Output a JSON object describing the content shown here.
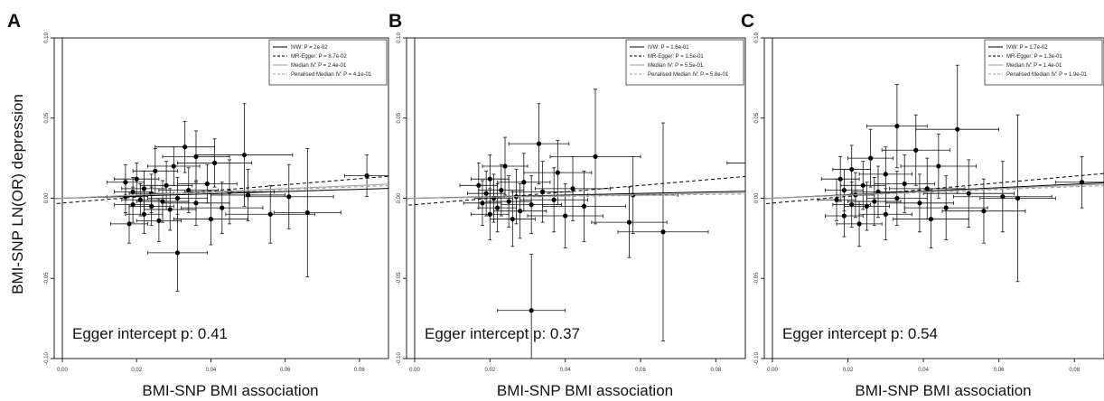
{
  "y_axis_label": "BMI-SNP LN(OR) depression",
  "chart_data": [
    {
      "type": "scatter",
      "panel_label": "A",
      "xlabel": "BMI-SNP BMI association",
      "xlim": [
        0.0,
        0.09
      ],
      "ylim": [
        -0.1,
        0.1
      ],
      "xticks": [
        "0.00",
        "0.02",
        "0.04",
        "0.06",
        "0.08"
      ],
      "yticks": [
        "-0.10",
        "-0.05",
        "0.00",
        "0.05",
        "0.10"
      ],
      "annotation": "Egger intercept p: 0.41",
      "legend": [
        {
          "label": "IVW: P = 2e-02",
          "style": "solid",
          "color": "#000000"
        },
        {
          "label": "MR-Egger: P = 8.7e-02",
          "style": "dashed",
          "color": "#000000"
        },
        {
          "label": "Median IV: P = 2.4e-01",
          "style": "solid",
          "color": "#9a9a9a"
        },
        {
          "label": "Penalised Median IV: P = 4.1e-01",
          "style": "dashed",
          "color": "#9a9a9a"
        }
      ],
      "lines": [
        {
          "name": "IVW",
          "intercept": 0,
          "slope": 0.07,
          "style": "solid",
          "color": "#000000"
        },
        {
          "name": "MR-Egger",
          "intercept": -0.003,
          "slope": 0.19,
          "style": "dashed",
          "color": "#000000"
        },
        {
          "name": "Median IV",
          "intercept": 0,
          "slope": 0.1,
          "style": "solid",
          "color": "#9a9a9a"
        },
        {
          "name": "Penalised Median IV",
          "intercept": 0,
          "slope": 0.09,
          "style": "dashed",
          "color": "#9a9a9a"
        }
      ],
      "points": [
        {
          "x": 0.033,
          "y": 0.032,
          "xerr": 0.008,
          "yerr": 0.016
        },
        {
          "x": 0.049,
          "y": 0.027,
          "xerr": 0.013,
          "yerr": 0.032
        },
        {
          "x": 0.036,
          "y": 0.026,
          "xerr": 0.009,
          "yerr": 0.016
        },
        {
          "x": 0.041,
          "y": 0.022,
          "xerr": 0.01,
          "yerr": 0.015
        },
        {
          "x": 0.03,
          "y": 0.02,
          "xerr": 0.007,
          "yerr": 0.012
        },
        {
          "x": 0.025,
          "y": 0.017,
          "xerr": 0.006,
          "yerr": 0.014
        },
        {
          "x": 0.082,
          "y": 0.014,
          "xerr": 0.006,
          "yerr": 0.013
        },
        {
          "x": 0.02,
          "y": 0.012,
          "xerr": 0.006,
          "yerr": 0.01
        },
        {
          "x": 0.017,
          "y": 0.01,
          "xerr": 0.005,
          "yerr": 0.011
        },
        {
          "x": 0.039,
          "y": 0.009,
          "xerr": 0.008,
          "yerr": 0.012
        },
        {
          "x": 0.028,
          "y": 0.008,
          "xerr": 0.007,
          "yerr": 0.015
        },
        {
          "x": 0.022,
          "y": 0.006,
          "xerr": 0.006,
          "yerr": 0.011
        },
        {
          "x": 0.034,
          "y": 0.005,
          "xerr": 0.008,
          "yerr": 0.014
        },
        {
          "x": 0.019,
          "y": 0.004,
          "xerr": 0.005,
          "yerr": 0.009
        },
        {
          "x": 0.045,
          "y": 0.004,
          "xerr": 0.012,
          "yerr": 0.02
        },
        {
          "x": 0.024,
          "y": 0.003,
          "xerr": 0.006,
          "yerr": 0.012
        },
        {
          "x": 0.05,
          "y": 0.002,
          "xerr": 0.01,
          "yerr": 0.016
        },
        {
          "x": 0.061,
          "y": 0.001,
          "xerr": 0.012,
          "yerr": 0.02
        },
        {
          "x": 0.017,
          "y": 0.001,
          "xerr": 0.005,
          "yerr": 0.01
        },
        {
          "x": 0.031,
          "y": 0.0,
          "xerr": 0.008,
          "yerr": 0.013
        },
        {
          "x": 0.021,
          "y": -0.001,
          "xerr": 0.005,
          "yerr": 0.01
        },
        {
          "x": 0.027,
          "y": -0.002,
          "xerr": 0.007,
          "yerr": 0.013
        },
        {
          "x": 0.036,
          "y": -0.003,
          "xerr": 0.009,
          "yerr": 0.014
        },
        {
          "x": 0.019,
          "y": -0.004,
          "xerr": 0.005,
          "yerr": 0.011
        },
        {
          "x": 0.024,
          "y": -0.005,
          "xerr": 0.006,
          "yerr": 0.012
        },
        {
          "x": 0.043,
          "y": -0.006,
          "xerr": 0.011,
          "yerr": 0.016
        },
        {
          "x": 0.029,
          "y": -0.007,
          "xerr": 0.007,
          "yerr": 0.013
        },
        {
          "x": 0.056,
          "y": -0.01,
          "xerr": 0.012,
          "yerr": 0.018
        },
        {
          "x": 0.066,
          "y": -0.009,
          "xerr": 0.009,
          "yerr": 0.04
        },
        {
          "x": 0.022,
          "y": -0.01,
          "xerr": 0.005,
          "yerr": 0.012
        },
        {
          "x": 0.04,
          "y": -0.013,
          "xerr": 0.01,
          "yerr": 0.016
        },
        {
          "x": 0.026,
          "y": -0.014,
          "xerr": 0.006,
          "yerr": 0.013
        },
        {
          "x": 0.018,
          "y": -0.016,
          "xerr": 0.005,
          "yerr": 0.012
        },
        {
          "x": 0.031,
          "y": -0.034,
          "xerr": 0.008,
          "yerr": 0.024
        }
      ]
    },
    {
      "type": "scatter",
      "panel_label": "B",
      "xlabel": "BMI-SNP BMI association",
      "xlim": [
        0.0,
        0.09
      ],
      "ylim": [
        -0.1,
        0.1
      ],
      "xticks": [
        "0.00",
        "0.02",
        "0.04",
        "0.06",
        "0.08"
      ],
      "yticks": [
        "-0.10",
        "-0.05",
        "0.00",
        "0.05",
        "0.10"
      ],
      "annotation": "Egger intercept p: 0.37",
      "legend": [
        {
          "label": "IVW: P = 1.6e-01",
          "style": "solid",
          "color": "#000000"
        },
        {
          "label": "MR-Egger: P = 1.5e-01",
          "style": "dashed",
          "color": "#000000"
        },
        {
          "label": "Median IV: P = 5.5e-01",
          "style": "solid",
          "color": "#9a9a9a"
        },
        {
          "label": "Penalised Median IV: P = 5.8e-01",
          "style": "dashed",
          "color": "#9a9a9a"
        }
      ],
      "lines": [
        {
          "name": "IVW",
          "intercept": 0,
          "slope": 0.05,
          "style": "solid",
          "color": "#000000"
        },
        {
          "name": "MR-Egger",
          "intercept": -0.004,
          "slope": 0.2,
          "style": "dashed",
          "color": "#000000"
        },
        {
          "name": "Median IV",
          "intercept": 0,
          "slope": 0.04,
          "style": "solid",
          "color": "#9a9a9a"
        },
        {
          "name": "Penalised Median IV",
          "intercept": 0,
          "slope": 0.03,
          "style": "dashed",
          "color": "#9a9a9a"
        }
      ],
      "points": [
        {
          "x": 0.033,
          "y": 0.034,
          "xerr": 0.008,
          "yerr": 0.025
        },
        {
          "x": 0.048,
          "y": 0.026,
          "xerr": 0.012,
          "yerr": 0.042
        },
        {
          "x": 0.089,
          "y": 0.022,
          "xerr": 0.006,
          "yerr": 0.022
        },
        {
          "x": 0.024,
          "y": 0.02,
          "xerr": 0.006,
          "yerr": 0.018
        },
        {
          "x": 0.038,
          "y": 0.016,
          "xerr": 0.009,
          "yerr": 0.02
        },
        {
          "x": 0.02,
          "y": 0.012,
          "xerr": 0.005,
          "yerr": 0.015
        },
        {
          "x": 0.029,
          "y": 0.01,
          "xerr": 0.007,
          "yerr": 0.018
        },
        {
          "x": 0.017,
          "y": 0.008,
          "xerr": 0.005,
          "yerr": 0.014
        },
        {
          "x": 0.042,
          "y": 0.006,
          "xerr": 0.01,
          "yerr": 0.02
        },
        {
          "x": 0.023,
          "y": 0.005,
          "xerr": 0.006,
          "yerr": 0.016
        },
        {
          "x": 0.034,
          "y": 0.004,
          "xerr": 0.008,
          "yerr": 0.019
        },
        {
          "x": 0.019,
          "y": 0.003,
          "xerr": 0.005,
          "yerr": 0.014
        },
        {
          "x": 0.058,
          "y": 0.002,
          "xerr": 0.012,
          "yerr": 0.024
        },
        {
          "x": 0.027,
          "y": 0.001,
          "xerr": 0.007,
          "yerr": 0.017
        },
        {
          "x": 0.021,
          "y": 0.0,
          "xerr": 0.005,
          "yerr": 0.015
        },
        {
          "x": 0.037,
          "y": -0.001,
          "xerr": 0.009,
          "yerr": 0.02
        },
        {
          "x": 0.025,
          "y": -0.002,
          "xerr": 0.006,
          "yerr": 0.016
        },
        {
          "x": 0.018,
          "y": -0.003,
          "xerr": 0.005,
          "yerr": 0.014
        },
        {
          "x": 0.031,
          "y": -0.004,
          "xerr": 0.008,
          "yerr": 0.018
        },
        {
          "x": 0.045,
          "y": -0.005,
          "xerr": 0.011,
          "yerr": 0.022
        },
        {
          "x": 0.022,
          "y": -0.006,
          "xerr": 0.005,
          "yerr": 0.015
        },
        {
          "x": 0.028,
          "y": -0.008,
          "xerr": 0.007,
          "yerr": 0.017
        },
        {
          "x": 0.02,
          "y": -0.01,
          "xerr": 0.005,
          "yerr": 0.016
        },
        {
          "x": 0.04,
          "y": -0.011,
          "xerr": 0.01,
          "yerr": 0.02
        },
        {
          "x": 0.026,
          "y": -0.013,
          "xerr": 0.006,
          "yerr": 0.017
        },
        {
          "x": 0.057,
          "y": -0.015,
          "xerr": 0.01,
          "yerr": 0.022
        },
        {
          "x": 0.066,
          "y": -0.021,
          "xerr": 0.012,
          "yerr": 0.068
        },
        {
          "x": 0.031,
          "y": -0.07,
          "xerr": 0.009,
          "yerr": 0.035
        }
      ]
    },
    {
      "type": "scatter",
      "panel_label": "C",
      "xlabel": "BMI-SNP BMI association",
      "xlim": [
        0.0,
        0.09
      ],
      "ylim": [
        -0.1,
        0.1
      ],
      "xticks": [
        "0.00",
        "0.02",
        "0.04",
        "0.06",
        "0.08"
      ],
      "yticks": [
        "-0.10",
        "-0.05",
        "0.00",
        "0.05",
        "0.10"
      ],
      "annotation": "Egger intercept p: 0.54",
      "legend": [
        {
          "label": "IVW: P = 1.7e-02",
          "style": "solid",
          "color": "#000000"
        },
        {
          "label": "MR-Egger: P = 1.3e-01",
          "style": "dashed",
          "color": "#000000"
        },
        {
          "label": "Median IV: P = 1.4e-01",
          "style": "solid",
          "color": "#9a9a9a"
        },
        {
          "label": "Penalised Median IV: P = 1.9e-01",
          "style": "dashed",
          "color": "#9a9a9a"
        }
      ],
      "lines": [
        {
          "name": "IVW",
          "intercept": 0,
          "slope": 0.11,
          "style": "solid",
          "color": "#000000"
        },
        {
          "name": "MR-Egger",
          "intercept": -0.003,
          "slope": 0.21,
          "style": "dashed",
          "color": "#000000"
        },
        {
          "name": "Median IV",
          "intercept": 0,
          "slope": 0.1,
          "style": "solid",
          "color": "#9a9a9a"
        },
        {
          "name": "Penalised Median IV",
          "intercept": 0,
          "slope": 0.09,
          "style": "dashed",
          "color": "#9a9a9a"
        }
      ],
      "points": [
        {
          "x": 0.033,
          "y": 0.045,
          "xerr": 0.008,
          "yerr": 0.026
        },
        {
          "x": 0.049,
          "y": 0.043,
          "xerr": 0.011,
          "yerr": 0.04
        },
        {
          "x": 0.038,
          "y": 0.03,
          "xerr": 0.009,
          "yerr": 0.022
        },
        {
          "x": 0.026,
          "y": 0.025,
          "xerr": 0.006,
          "yerr": 0.018
        },
        {
          "x": 0.044,
          "y": 0.02,
          "xerr": 0.01,
          "yerr": 0.02
        },
        {
          "x": 0.021,
          "y": 0.018,
          "xerr": 0.005,
          "yerr": 0.015
        },
        {
          "x": 0.03,
          "y": 0.015,
          "xerr": 0.007,
          "yerr": 0.017
        },
        {
          "x": 0.018,
          "y": 0.012,
          "xerr": 0.005,
          "yerr": 0.014
        },
        {
          "x": 0.082,
          "y": 0.01,
          "xerr": 0.007,
          "yerr": 0.016
        },
        {
          "x": 0.035,
          "y": 0.009,
          "xerr": 0.008,
          "yerr": 0.018
        },
        {
          "x": 0.024,
          "y": 0.008,
          "xerr": 0.006,
          "yerr": 0.015
        },
        {
          "x": 0.041,
          "y": 0.006,
          "xerr": 0.01,
          "yerr": 0.019
        },
        {
          "x": 0.019,
          "y": 0.005,
          "xerr": 0.005,
          "yerr": 0.013
        },
        {
          "x": 0.028,
          "y": 0.004,
          "xerr": 0.007,
          "yerr": 0.016
        },
        {
          "x": 0.052,
          "y": 0.003,
          "xerr": 0.012,
          "yerr": 0.021
        },
        {
          "x": 0.022,
          "y": 0.002,
          "xerr": 0.005,
          "yerr": 0.014
        },
        {
          "x": 0.061,
          "y": 0.001,
          "xerr": 0.013,
          "yerr": 0.022
        },
        {
          "x": 0.033,
          "y": 0.0,
          "xerr": 0.008,
          "yerr": 0.017
        },
        {
          "x": 0.017,
          "y": -0.001,
          "xerr": 0.005,
          "yerr": 0.013
        },
        {
          "x": 0.027,
          "y": -0.002,
          "xerr": 0.007,
          "yerr": 0.015
        },
        {
          "x": 0.039,
          "y": -0.003,
          "xerr": 0.009,
          "yerr": 0.018
        },
        {
          "x": 0.021,
          "y": -0.004,
          "xerr": 0.005,
          "yerr": 0.014
        },
        {
          "x": 0.025,
          "y": -0.005,
          "xerr": 0.006,
          "yerr": 0.015
        },
        {
          "x": 0.046,
          "y": -0.006,
          "xerr": 0.011,
          "yerr": 0.02
        },
        {
          "x": 0.056,
          "y": -0.008,
          "xerr": 0.011,
          "yerr": 0.02
        },
        {
          "x": 0.03,
          "y": -0.01,
          "xerr": 0.007,
          "yerr": 0.016
        },
        {
          "x": 0.019,
          "y": -0.011,
          "xerr": 0.005,
          "yerr": 0.013
        },
        {
          "x": 0.042,
          "y": -0.013,
          "xerr": 0.01,
          "yerr": 0.018
        },
        {
          "x": 0.023,
          "y": -0.016,
          "xerr": 0.006,
          "yerr": 0.014
        },
        {
          "x": 0.065,
          "y": 0.0,
          "xerr": 0.01,
          "yerr": 0.052
        }
      ]
    }
  ]
}
